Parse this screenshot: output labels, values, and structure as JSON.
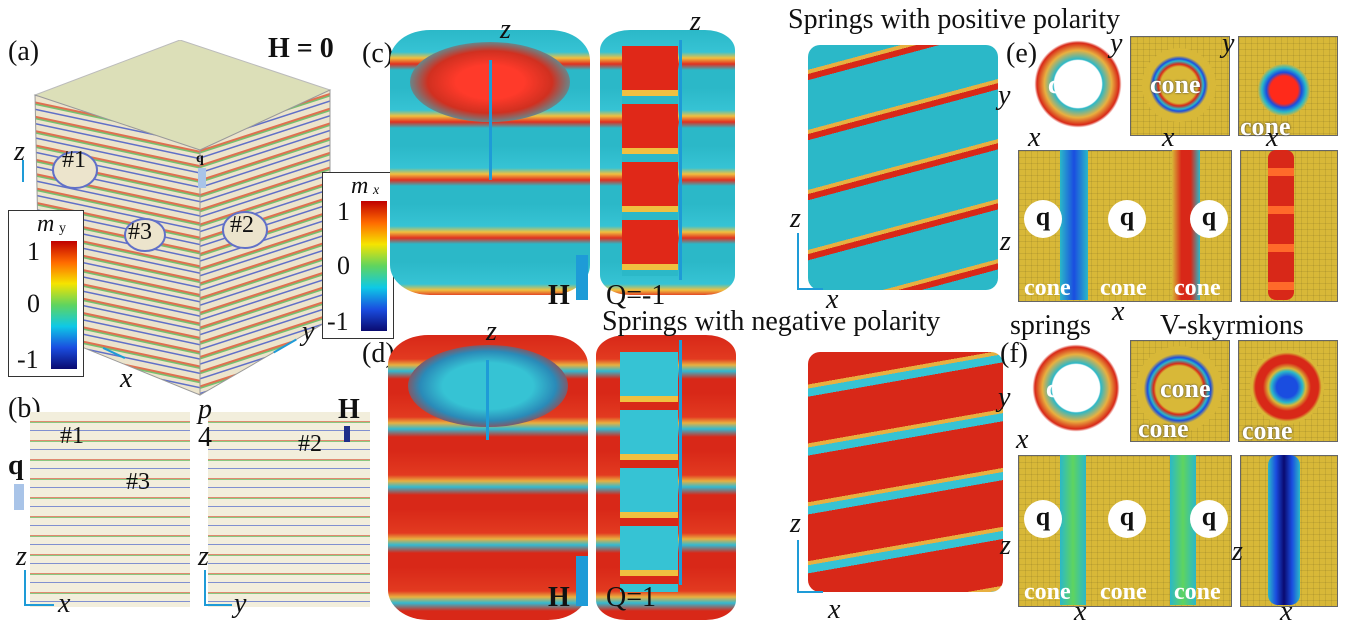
{
  "panel_labels": {
    "a": "(a)",
    "b": "(b)",
    "c": "(c)",
    "d": "(d)",
    "e": "(e)",
    "f": "(f)"
  },
  "panel_a": {
    "field_label": "H = 0",
    "domains": [
      "#1",
      "#2",
      "#3"
    ],
    "q_label": "q",
    "axes": {
      "z": "z",
      "x": "x",
      "y": "y"
    },
    "colorbar_y": {
      "title": "m",
      "sub": "y",
      "max": "1",
      "mid": "0",
      "min": "-1"
    },
    "colorbar_x": {
      "title": "m",
      "sub": "x",
      "max": "1",
      "mid": "0",
      "min": "-1"
    }
  },
  "panel_b": {
    "left": {
      "domains": [
        "#1",
        "#3"
      ],
      "q_label": "q",
      "axes": {
        "z": "z",
        "h": "x"
      }
    },
    "right": {
      "domains": [
        "#2"
      ],
      "field": "H",
      "axes": {
        "z": "z",
        "h": "y"
      }
    },
    "period_top": "p",
    "period_bottom": "4"
  },
  "panel_c": {
    "z": "z",
    "field": "H",
    "charge": "Q=-1",
    "x": "x",
    "heading": "Springs with positive polarity"
  },
  "panel_d": {
    "z": "z",
    "field": "H",
    "charge": "Q=1",
    "x": "x",
    "heading": "Springs with negative polarity"
  },
  "panel_e": {
    "cone": "cone",
    "q": "q",
    "axes": {
      "x": "x",
      "y": "y",
      "z": "z"
    }
  },
  "panel_f": {
    "cone": "cone",
    "q": "q",
    "axes": {
      "x": "x",
      "y": "y",
      "z": "z"
    },
    "springs_label": "springs",
    "vsk_label": "V-skyrmions"
  },
  "colors": {
    "accent_blue": "#1e9bd7",
    "cone_yellow": "#d8b838",
    "red": "#d82818",
    "cyan": "#2bb8c8"
  }
}
